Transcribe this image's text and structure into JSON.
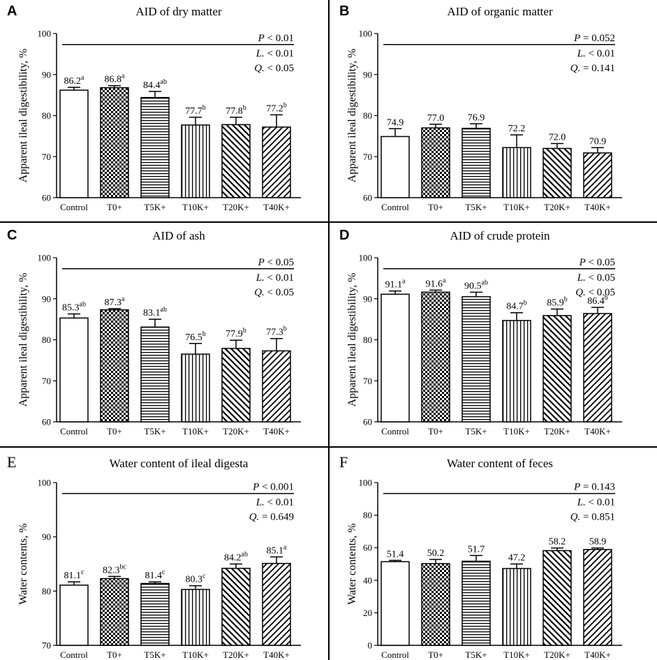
{
  "figure": {
    "background": "#ffffff",
    "line_color": "#000000"
  },
  "chart_data": [
    {
      "panel_label": "A",
      "label_style": "bold-sans",
      "type": "bar",
      "title": "AID of dry matter",
      "ylabel": "Apparent ileal digestibility, %",
      "ylim": [
        60,
        100
      ],
      "yticks": [
        60,
        70,
        80,
        90,
        100
      ],
      "categories": [
        "Control",
        "T0+",
        "T5K+",
        "T10K+",
        "T20K+",
        "T40K+"
      ],
      "values": [
        86.2,
        86.8,
        84.4,
        77.7,
        77.8,
        77.2
      ],
      "errors": [
        0.7,
        0.5,
        1.5,
        1.9,
        1.8,
        3.0
      ],
      "value_labels": [
        "86.2",
        "86.8",
        "84.4",
        "77.7",
        "77.8",
        "77.2"
      ],
      "superscripts": [
        "a",
        "a",
        "ab",
        "b",
        "b",
        "b"
      ],
      "stats": [
        {
          "symbol": "P",
          "text": " < 0.01"
        },
        {
          "symbol": "L.",
          "text": " < 0.01"
        },
        {
          "symbol": "Q.",
          "text": " < 0.05"
        }
      ]
    },
    {
      "panel_label": "B",
      "label_style": "bold-sans",
      "type": "bar",
      "title": "AID of organic matter",
      "ylabel": "Apparent ileal digestibility, %",
      "ylim": [
        60,
        100
      ],
      "yticks": [
        60,
        70,
        80,
        90,
        100
      ],
      "categories": [
        "Control",
        "T0+",
        "T5K+",
        "T10K+",
        "T20K+",
        "T40K+"
      ],
      "values": [
        74.9,
        77.0,
        76.9,
        72.2,
        72.0,
        70.9
      ],
      "errors": [
        1.9,
        0.9,
        1.1,
        3.1,
        1.2,
        1.3
      ],
      "value_labels": [
        "74.9",
        "77.0",
        "76.9",
        "72.2",
        "72.0",
        "70.9"
      ],
      "superscripts": [
        "",
        "",
        "",
        "",
        "",
        ""
      ],
      "stats": [
        {
          "symbol": "P",
          "text": " = 0.052"
        },
        {
          "symbol": "L.",
          "text": " < 0.01"
        },
        {
          "symbol": "Q.",
          "text": " = 0.141"
        }
      ]
    },
    {
      "panel_label": "C",
      "label_style": "bold-sans",
      "type": "bar",
      "title": "AID of ash",
      "ylabel": "Apparent ileal digestibility, %",
      "ylim": [
        60,
        100
      ],
      "yticks": [
        60,
        70,
        80,
        90,
        100
      ],
      "categories": [
        "Control",
        "T0+",
        "T5K+",
        "T10K+",
        "T20K+",
        "T40K+"
      ],
      "values": [
        85.3,
        87.3,
        83.1,
        76.5,
        77.9,
        77.3
      ],
      "errors": [
        1.0,
        0.3,
        1.9,
        2.6,
        2.0,
        3.0
      ],
      "value_labels": [
        "85.3",
        "87.3",
        "83.1",
        "76.5",
        "77.9",
        "77.3"
      ],
      "superscripts": [
        "ab",
        "a",
        "ab",
        "b",
        "b",
        "b"
      ],
      "stats": [
        {
          "symbol": "P",
          "text": " < 0.05"
        },
        {
          "symbol": "L.",
          "text": " < 0.01"
        },
        {
          "symbol": "Q.",
          "text": " < 0.05"
        }
      ]
    },
    {
      "panel_label": "D",
      "label_style": "bold-sans",
      "type": "bar",
      "title": "AID of crude protein",
      "ylabel": "Apparent ileal digestibility, %",
      "ylim": [
        60,
        100
      ],
      "yticks": [
        60,
        70,
        80,
        90,
        100
      ],
      "categories": [
        "Control",
        "T0+",
        "T5K+",
        "T10K+",
        "T20K+",
        "T40K+"
      ],
      "values": [
        91.1,
        91.6,
        90.5,
        84.7,
        85.9,
        86.4
      ],
      "errors": [
        0.8,
        0.5,
        1.1,
        1.9,
        1.6,
        1.5
      ],
      "value_labels": [
        "91.1",
        "91.6",
        "90.5",
        "84.7",
        "85.9",
        "86.4"
      ],
      "superscripts": [
        "a",
        "a",
        "ab",
        "b",
        "b",
        "b"
      ],
      "stats": [
        {
          "symbol": "P",
          "text": " < 0.05"
        },
        {
          "symbol": "L.",
          "text": " < 0.05"
        },
        {
          "symbol": "Q.",
          "text": " < 0.05"
        }
      ]
    },
    {
      "panel_label": "E",
      "label_style": "serif",
      "type": "bar",
      "title": "Water content of ileal digesta",
      "ylabel": "Water contents, %",
      "ylim": [
        70,
        100
      ],
      "yticks": [
        70,
        80,
        90,
        100
      ],
      "categories": [
        "Control",
        "T0+",
        "T5K+",
        "T10K+",
        "T20K+",
        "T40K+"
      ],
      "values": [
        81.1,
        82.3,
        81.4,
        80.3,
        84.2,
        85.1
      ],
      "errors": [
        0.6,
        0.4,
        0.3,
        0.7,
        0.8,
        1.2
      ],
      "value_labels": [
        "81.1",
        "82.3",
        "81.4",
        "80.3",
        "84.2",
        "85.1"
      ],
      "superscripts": [
        "c",
        "bc",
        "c",
        "c",
        "ab",
        "a"
      ],
      "stats": [
        {
          "symbol": "P",
          "text": " < 0.001"
        },
        {
          "symbol": "L.",
          "text": " < 0.01"
        },
        {
          "symbol": "Q.",
          "text": " = 0.649"
        }
      ]
    },
    {
      "panel_label": "F",
      "label_style": "serif",
      "type": "bar",
      "title": "Water content of feces",
      "ylabel": "Water contents, %",
      "ylim": [
        0,
        100
      ],
      "yticks": [
        0,
        20,
        40,
        60,
        80,
        100
      ],
      "categories": [
        "Control",
        "T0+",
        "T5K+",
        "T10K+",
        "T20K+",
        "T40K+"
      ],
      "values": [
        51.4,
        50.2,
        51.7,
        47.2,
        58.2,
        58.9
      ],
      "errors": [
        0.8,
        2.6,
        3.5,
        2.8,
        1.6,
        0.9
      ],
      "value_labels": [
        "51.4",
        "50.2",
        "51.7",
        "47.2",
        "58.2",
        "58.9"
      ],
      "superscripts": [
        "",
        "",
        "",
        "",
        "",
        ""
      ],
      "stats": [
        {
          "symbol": "P",
          "text": " = 0.143"
        },
        {
          "symbol": "L.",
          "text": " < 0.01"
        },
        {
          "symbol": "Q.",
          "text": " = 0.851"
        }
      ]
    }
  ]
}
